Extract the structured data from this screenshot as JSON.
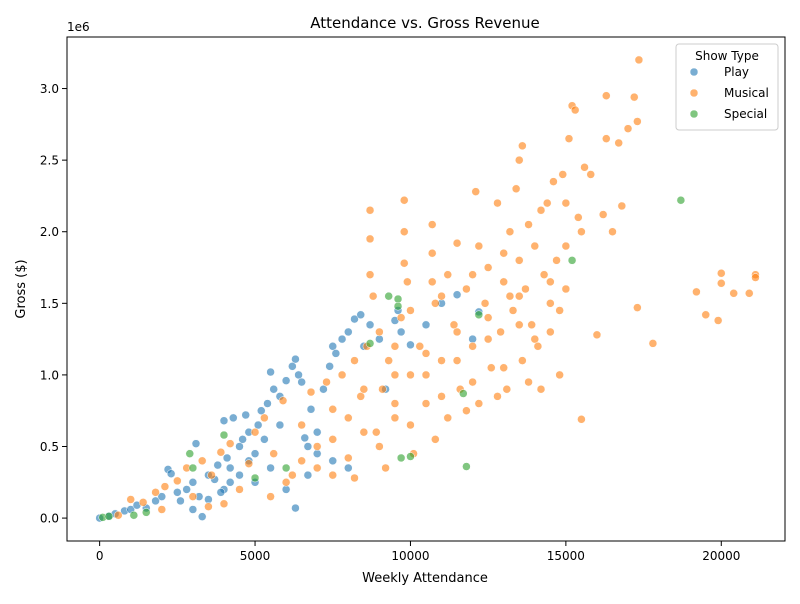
{
  "chart_data": {
    "type": "scatter",
    "title": "Attendance vs. Gross Revenue",
    "xlabel": "Weekly Attendance",
    "ylabel": "Gross ($)",
    "y_offset_label": "1e6",
    "xlim": [
      -1050,
      22050
    ],
    "ylim": [
      -160000,
      3360000
    ],
    "x_ticks": [
      0,
      5000,
      10000,
      15000,
      20000
    ],
    "x_tick_labels": [
      "0",
      "5000",
      "10000",
      "15000",
      "20000"
    ],
    "y_ticks": [
      0,
      500000,
      1000000,
      1500000,
      2000000,
      2500000,
      3000000
    ],
    "y_tick_labels": [
      "0.0",
      "0.5",
      "1.0",
      "1.5",
      "2.0",
      "2.5",
      "3.0"
    ],
    "grid": false,
    "legend": {
      "title": "Show Type",
      "position": "top-right",
      "entries": [
        "Play",
        "Musical",
        "Special"
      ]
    },
    "series": [
      {
        "name": "Play",
        "color": "#1f77b4",
        "points": [
          [
            0,
            0
          ],
          [
            300,
            15000
          ],
          [
            500,
            30000
          ],
          [
            800,
            50000
          ],
          [
            1000,
            60000
          ],
          [
            1200,
            90000
          ],
          [
            1500,
            70000
          ],
          [
            1800,
            120000
          ],
          [
            2000,
            150000
          ],
          [
            2200,
            340000
          ],
          [
            2300,
            310000
          ],
          [
            2500,
            180000
          ],
          [
            2800,
            200000
          ],
          [
            3000,
            250000
          ],
          [
            3100,
            520000
          ],
          [
            3200,
            150000
          ],
          [
            3300,
            10000
          ],
          [
            3500,
            300000
          ],
          [
            3700,
            270000
          ],
          [
            3800,
            370000
          ],
          [
            4000,
            680000
          ],
          [
            4100,
            420000
          ],
          [
            4200,
            350000
          ],
          [
            4300,
            700000
          ],
          [
            4500,
            500000
          ],
          [
            4600,
            550000
          ],
          [
            4700,
            720000
          ],
          [
            4800,
            600000
          ],
          [
            5000,
            450000
          ],
          [
            5100,
            650000
          ],
          [
            5200,
            750000
          ],
          [
            5400,
            800000
          ],
          [
            5500,
            1020000
          ],
          [
            5600,
            900000
          ],
          [
            5800,
            850000
          ],
          [
            6000,
            960000
          ],
          [
            6200,
            1060000
          ],
          [
            6300,
            1110000
          ],
          [
            6400,
            1000000
          ],
          [
            6500,
            950000
          ],
          [
            6600,
            560000
          ],
          [
            6700,
            500000
          ],
          [
            6800,
            760000
          ],
          [
            7000,
            600000
          ],
          [
            7200,
            900000
          ],
          [
            7400,
            1060000
          ],
          [
            7500,
            1200000
          ],
          [
            7600,
            1150000
          ],
          [
            7800,
            1250000
          ],
          [
            8000,
            1300000
          ],
          [
            8200,
            1390000
          ],
          [
            8400,
            1420000
          ],
          [
            8500,
            1200000
          ],
          [
            8700,
            1350000
          ],
          [
            9000,
            1250000
          ],
          [
            9200,
            900000
          ],
          [
            9500,
            1380000
          ],
          [
            9600,
            1450000
          ],
          [
            9700,
            1300000
          ],
          [
            10000,
            1210000
          ],
          [
            10500,
            1350000
          ],
          [
            11000,
            1500000
          ],
          [
            11500,
            1560000
          ],
          [
            12000,
            1250000
          ],
          [
            12200,
            1440000
          ],
          [
            3000,
            60000
          ],
          [
            2600,
            120000
          ],
          [
            4000,
            200000
          ],
          [
            3500,
            130000
          ],
          [
            4500,
            300000
          ],
          [
            5000,
            250000
          ],
          [
            5500,
            350000
          ],
          [
            6000,
            200000
          ],
          [
            6300,
            70000
          ],
          [
            6700,
            300000
          ],
          [
            7000,
            450000
          ],
          [
            7500,
            400000
          ],
          [
            8000,
            350000
          ],
          [
            4800,
            400000
          ],
          [
            5300,
            550000
          ],
          [
            5800,
            650000
          ],
          [
            4200,
            250000
          ],
          [
            3900,
            180000
          ]
        ]
      },
      {
        "name": "Musical",
        "color": "#ff7f0e",
        "points": [
          [
            600,
            20000
          ],
          [
            1000,
            130000
          ],
          [
            1400,
            110000
          ],
          [
            1800,
            180000
          ],
          [
            2100,
            220000
          ],
          [
            2500,
            260000
          ],
          [
            2800,
            350000
          ],
          [
            3000,
            150000
          ],
          [
            3300,
            400000
          ],
          [
            3600,
            300000
          ],
          [
            3900,
            460000
          ],
          [
            4200,
            520000
          ],
          [
            4500,
            200000
          ],
          [
            4800,
            380000
          ],
          [
            5000,
            600000
          ],
          [
            5300,
            700000
          ],
          [
            5600,
            450000
          ],
          [
            5900,
            820000
          ],
          [
            6200,
            300000
          ],
          [
            6500,
            650000
          ],
          [
            6800,
            880000
          ],
          [
            7000,
            500000
          ],
          [
            7300,
            950000
          ],
          [
            7500,
            760000
          ],
          [
            7800,
            1000000
          ],
          [
            8000,
            420000
          ],
          [
            8200,
            1100000
          ],
          [
            8400,
            850000
          ],
          [
            8600,
            1200000
          ],
          [
            8700,
            2150000
          ],
          [
            8700,
            1950000
          ],
          [
            8700,
            1700000
          ],
          [
            8800,
            1550000
          ],
          [
            8900,
            600000
          ],
          [
            9000,
            1300000
          ],
          [
            9100,
            900000
          ],
          [
            9300,
            1100000
          ],
          [
            9500,
            700000
          ],
          [
            9700,
            1400000
          ],
          [
            9800,
            2220000
          ],
          [
            9800,
            2000000
          ],
          [
            9800,
            1780000
          ],
          [
            9900,
            1650000
          ],
          [
            10000,
            1000000
          ],
          [
            10100,
            450000
          ],
          [
            10300,
            1200000
          ],
          [
            10500,
            800000
          ],
          [
            10700,
            2050000
          ],
          [
            10700,
            1850000
          ],
          [
            10700,
            1650000
          ],
          [
            10800,
            1500000
          ],
          [
            11000,
            1100000
          ],
          [
            11200,
            700000
          ],
          [
            11400,
            1350000
          ],
          [
            11500,
            1920000
          ],
          [
            11600,
            900000
          ],
          [
            11800,
            1600000
          ],
          [
            12000,
            1200000
          ],
          [
            12100,
            2280000
          ],
          [
            12200,
            800000
          ],
          [
            12400,
            1500000
          ],
          [
            12500,
            1750000
          ],
          [
            12600,
            1050000
          ],
          [
            12800,
            2200000
          ],
          [
            12900,
            1300000
          ],
          [
            13000,
            1650000
          ],
          [
            13100,
            900000
          ],
          [
            13200,
            2000000
          ],
          [
            13300,
            1450000
          ],
          [
            13400,
            2300000
          ],
          [
            13500,
            2500000
          ],
          [
            13500,
            1800000
          ],
          [
            13600,
            2600000
          ],
          [
            13600,
            1100000
          ],
          [
            13700,
            1600000
          ],
          [
            13800,
            2050000
          ],
          [
            13900,
            1350000
          ],
          [
            14000,
            1900000
          ],
          [
            14100,
            1200000
          ],
          [
            14200,
            2150000
          ],
          [
            14300,
            1700000
          ],
          [
            14400,
            2200000
          ],
          [
            14500,
            1500000
          ],
          [
            14600,
            2350000
          ],
          [
            14700,
            1800000
          ],
          [
            14800,
            1000000
          ],
          [
            14900,
            2400000
          ],
          [
            15000,
            2200000
          ],
          [
            15000,
            1600000
          ],
          [
            15100,
            2650000
          ],
          [
            15200,
            2880000
          ],
          [
            15300,
            2850000
          ],
          [
            15400,
            2100000
          ],
          [
            15500,
            690000
          ],
          [
            15600,
            2450000
          ],
          [
            15800,
            2400000
          ],
          [
            16000,
            1280000
          ],
          [
            16200,
            2120000
          ],
          [
            16300,
            2950000
          ],
          [
            16300,
            2650000
          ],
          [
            16500,
            2000000
          ],
          [
            16700,
            2620000
          ],
          [
            16800,
            2180000
          ],
          [
            17000,
            2720000
          ],
          [
            17200,
            2940000
          ],
          [
            17300,
            1470000
          ],
          [
            17300,
            2770000
          ],
          [
            17350,
            3200000
          ],
          [
            17800,
            1220000
          ],
          [
            19200,
            1580000
          ],
          [
            19500,
            1420000
          ],
          [
            19900,
            1380000
          ],
          [
            20000,
            1640000
          ],
          [
            20000,
            1710000
          ],
          [
            20400,
            1570000
          ],
          [
            20900,
            1570000
          ],
          [
            21100,
            1700000
          ],
          [
            21100,
            1680000
          ],
          [
            7500,
            300000
          ],
          [
            8000,
            700000
          ],
          [
            9000,
            500000
          ],
          [
            10000,
            650000
          ],
          [
            11000,
            850000
          ],
          [
            12000,
            950000
          ],
          [
            13000,
            1050000
          ],
          [
            14000,
            1250000
          ],
          [
            6000,
            250000
          ],
          [
            7000,
            350000
          ],
          [
            9500,
            1000000
          ],
          [
            10500,
            1150000
          ],
          [
            11500,
            1300000
          ],
          [
            12500,
            1400000
          ],
          [
            13500,
            1550000
          ],
          [
            14500,
            1650000
          ],
          [
            8500,
            900000
          ],
          [
            9500,
            1200000
          ],
          [
            10000,
            1450000
          ],
          [
            11000,
            1550000
          ],
          [
            12000,
            1700000
          ],
          [
            13000,
            1850000
          ],
          [
            5500,
            150000
          ],
          [
            4000,
            100000
          ],
          [
            3500,
            80000
          ],
          [
            2000,
            60000
          ],
          [
            6500,
            400000
          ],
          [
            7500,
            550000
          ],
          [
            8500,
            600000
          ],
          [
            9500,
            800000
          ],
          [
            10500,
            1000000
          ],
          [
            11500,
            1100000
          ],
          [
            12500,
            1250000
          ],
          [
            13500,
            1350000
          ],
          [
            14500,
            1300000
          ],
          [
            15000,
            1900000
          ],
          [
            15500,
            2000000
          ],
          [
            10800,
            550000
          ],
          [
            11800,
            750000
          ],
          [
            12800,
            850000
          ],
          [
            13800,
            950000
          ],
          [
            14200,
            900000
          ],
          [
            9200,
            350000
          ],
          [
            8200,
            280000
          ],
          [
            11200,
            1700000
          ],
          [
            12200,
            1900000
          ],
          [
            13200,
            1550000
          ],
          [
            14800,
            1450000
          ]
        ]
      },
      {
        "name": "Special",
        "color": "#2ca02c",
        "points": [
          [
            100,
            5000
          ],
          [
            300,
            12000
          ],
          [
            1100,
            20000
          ],
          [
            1500,
            40000
          ],
          [
            2900,
            450000
          ],
          [
            3000,
            350000
          ],
          [
            4000,
            580000
          ],
          [
            9300,
            1550000
          ],
          [
            9600,
            1530000
          ],
          [
            9600,
            1480000
          ],
          [
            9700,
            420000
          ],
          [
            10000,
            430000
          ],
          [
            11700,
            870000
          ],
          [
            11800,
            360000
          ],
          [
            12200,
            1420000
          ],
          [
            15200,
            1800000
          ],
          [
            18700,
            2220000
          ],
          [
            8700,
            1220000
          ],
          [
            6000,
            350000
          ],
          [
            5000,
            280000
          ]
        ]
      }
    ]
  }
}
